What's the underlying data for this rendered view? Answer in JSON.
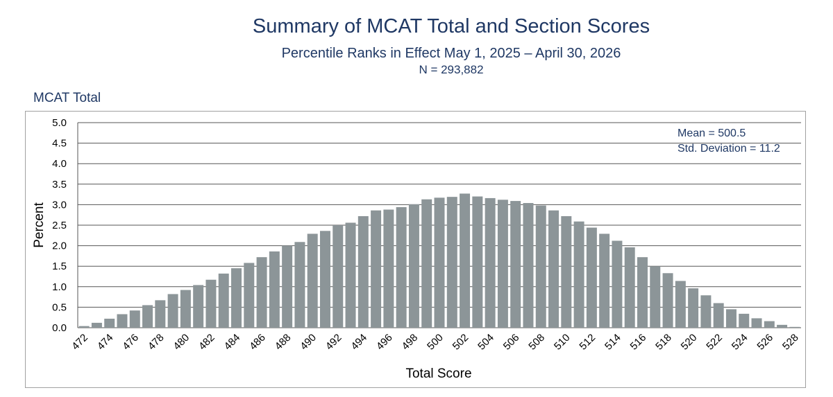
{
  "header": {
    "title": "Summary of MCAT Total and Section Scores",
    "subtitle": "Percentile Ranks in Effect May 1, 2025 – April 30, 2026",
    "n": "N = 293,882"
  },
  "section_label": "MCAT Total",
  "stats": {
    "mean": "Mean = 500.5",
    "sd": "Std. Deviation = 11.2"
  },
  "colors": {
    "bar": "#8c9598",
    "title": "#1f3864",
    "grid": "#555555"
  },
  "chart_data": {
    "type": "bar",
    "title": "Summary of MCAT Total and Section Scores",
    "xlabel": "Total Score",
    "ylabel": "Percent",
    "ylim": [
      0,
      5.0
    ],
    "ytick_labels": [
      "0.0",
      "0.5",
      "1.0",
      "1.5",
      "2.0",
      "2.5",
      "3.0",
      "3.5",
      "4.0",
      "4.5",
      "5.0"
    ],
    "grid": true,
    "categories": [
      472,
      473,
      474,
      475,
      476,
      477,
      478,
      479,
      480,
      481,
      482,
      483,
      484,
      485,
      486,
      487,
      488,
      489,
      490,
      491,
      492,
      493,
      494,
      495,
      496,
      497,
      498,
      499,
      500,
      501,
      502,
      503,
      504,
      505,
      506,
      507,
      508,
      509,
      510,
      511,
      512,
      513,
      514,
      515,
      516,
      517,
      518,
      519,
      520,
      521,
      522,
      523,
      524,
      525,
      526,
      527,
      528
    ],
    "xtick_labels": [
      "472",
      "474",
      "476",
      "478",
      "480",
      "482",
      "484",
      "486",
      "488",
      "490",
      "492",
      "494",
      "496",
      "498",
      "500",
      "502",
      "504",
      "506",
      "508",
      "510",
      "512",
      "514",
      "516",
      "518",
      "520",
      "522",
      "524",
      "526",
      "528"
    ],
    "values": [
      0.04,
      0.12,
      0.22,
      0.33,
      0.42,
      0.55,
      0.67,
      0.82,
      0.92,
      1.04,
      1.17,
      1.32,
      1.45,
      1.58,
      1.72,
      1.86,
      2.0,
      2.09,
      2.29,
      2.36,
      2.5,
      2.56,
      2.72,
      2.86,
      2.88,
      2.94,
      3.01,
      3.13,
      3.17,
      3.19,
      3.27,
      3.2,
      3.16,
      3.12,
      3.09,
      3.04,
      2.98,
      2.86,
      2.72,
      2.59,
      2.44,
      2.29,
      2.12,
      1.96,
      1.72,
      1.5,
      1.33,
      1.14,
      0.96,
      0.79,
      0.6,
      0.45,
      0.34,
      0.23,
      0.16,
      0.07,
      0.02
    ]
  }
}
